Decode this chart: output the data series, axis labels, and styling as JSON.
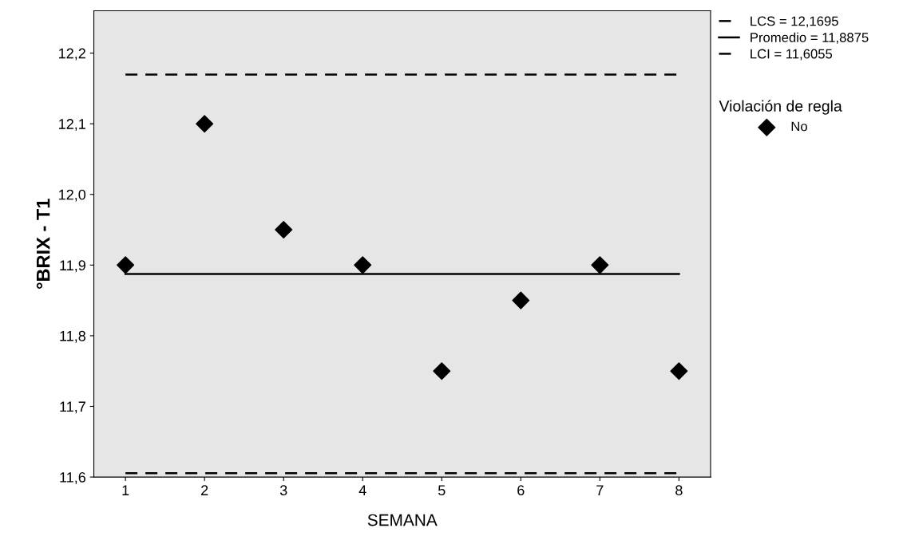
{
  "chart_data": {
    "type": "scatter",
    "xlabel": "SEMANA",
    "ylabel": "°BRIX - T1",
    "x": [
      1,
      2,
      3,
      4,
      5,
      6,
      7,
      8
    ],
    "xlim": [
      0.6,
      8.4
    ],
    "xticks": [
      1,
      2,
      3,
      4,
      5,
      6,
      7,
      8
    ],
    "ylim": [
      11.6,
      12.26
    ],
    "yticks": [
      {
        "value": 11.6,
        "label": "11,6"
      },
      {
        "value": 11.7,
        "label": "11,7"
      },
      {
        "value": 11.8,
        "label": "11,8"
      },
      {
        "value": 11.9,
        "label": "11,9"
      },
      {
        "value": 12.0,
        "label": "12,0"
      },
      {
        "value": 12.1,
        "label": "12,1"
      },
      {
        "value": 12.2,
        "label": "12,2"
      }
    ],
    "legend": "right",
    "legend_title": "Violación de regla",
    "grid": false,
    "series": [
      {
        "name": "LCS = 12,1695",
        "type": "line",
        "line_style": "dashed",
        "marker": "none",
        "color": "#000000",
        "values": [
          12.1695,
          12.1695,
          12.1695,
          12.1695,
          12.1695,
          12.1695,
          12.1695,
          12.1695
        ]
      },
      {
        "name": "Promedio = 11,8875",
        "type": "line",
        "line_style": "solid",
        "marker": "none",
        "color": "#000000",
        "values": [
          11.8875,
          11.8875,
          11.8875,
          11.8875,
          11.8875,
          11.8875,
          11.8875,
          11.8875
        ]
      },
      {
        "name": "LCI = 11,6055",
        "type": "line",
        "line_style": "dashed",
        "marker": "none",
        "color": "#000000",
        "values": [
          11.6055,
          11.6055,
          11.6055,
          11.6055,
          11.6055,
          11.6055,
          11.6055,
          11.6055
        ]
      },
      {
        "name": "No",
        "marker": "diamond",
        "color": "#000000",
        "values": [
          11.9,
          12.1,
          11.95,
          11.9,
          11.75,
          11.85,
          11.9,
          11.75
        ]
      }
    ]
  }
}
